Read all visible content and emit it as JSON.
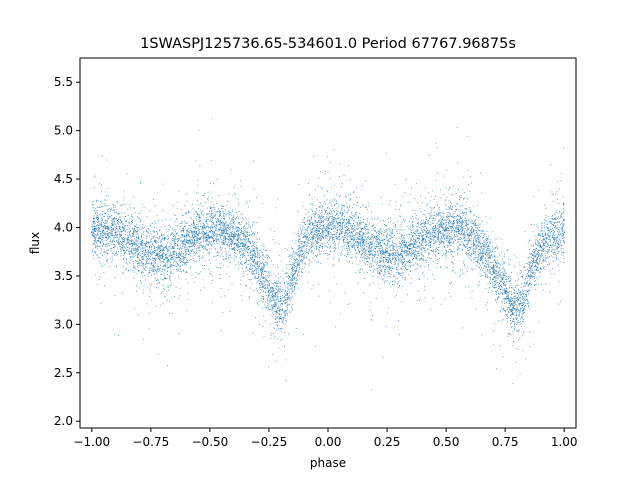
{
  "chart_data": {
    "type": "scatter",
    "title": "1SWASPJ125736.65-534601.0 Period 67767.96875s",
    "xlabel": "phase",
    "ylabel": "flux",
    "xlim": [
      -1.05,
      1.05
    ],
    "ylim": [
      1.93,
      5.75
    ],
    "xticks": [
      -1.0,
      -0.75,
      -0.5,
      -0.25,
      0.0,
      0.25,
      0.5,
      0.75,
      1.0
    ],
    "xtick_labels": [
      "−1.00",
      "−0.75",
      "−0.50",
      "−0.25",
      "0.00",
      "0.25",
      "0.50",
      "0.75",
      "1.00"
    ],
    "yticks": [
      2.0,
      2.5,
      3.0,
      3.5,
      4.0,
      4.5,
      5.0,
      5.5
    ],
    "ytick_labels": [
      "2.0",
      "2.5",
      "3.0",
      "3.5",
      "4.0",
      "4.5",
      "5.0",
      "5.5"
    ],
    "grid": false,
    "marker_color": "#1f77b4",
    "series": [
      {
        "x": [
          -1.0,
          -0.95,
          -0.9,
          -0.85,
          -0.8,
          -0.75,
          -0.7,
          -0.65,
          -0.6,
          -0.55,
          -0.5,
          -0.45,
          -0.4,
          -0.35,
          -0.3,
          -0.25,
          -0.22,
          -0.2,
          -0.18,
          -0.15,
          -0.1,
          -0.05,
          0.0,
          0.05,
          0.1,
          0.15,
          0.2,
          0.25,
          0.3,
          0.35,
          0.4,
          0.45,
          0.5,
          0.55,
          0.6,
          0.65,
          0.7,
          0.75,
          0.78,
          0.8,
          0.82,
          0.85,
          0.9,
          0.95,
          1.0
        ],
        "y": [
          3.95,
          3.97,
          3.95,
          3.88,
          3.8,
          3.73,
          3.7,
          3.75,
          3.85,
          3.92,
          3.96,
          3.97,
          3.9,
          3.82,
          3.62,
          3.35,
          3.22,
          3.15,
          3.22,
          3.5,
          3.85,
          3.97,
          4.0,
          4.02,
          3.95,
          3.85,
          3.78,
          3.75,
          3.72,
          3.78,
          3.88,
          3.95,
          3.97,
          3.98,
          3.92,
          3.8,
          3.6,
          3.35,
          3.2,
          3.15,
          3.22,
          3.5,
          3.8,
          3.9,
          3.95
        ]
      }
    ]
  }
}
